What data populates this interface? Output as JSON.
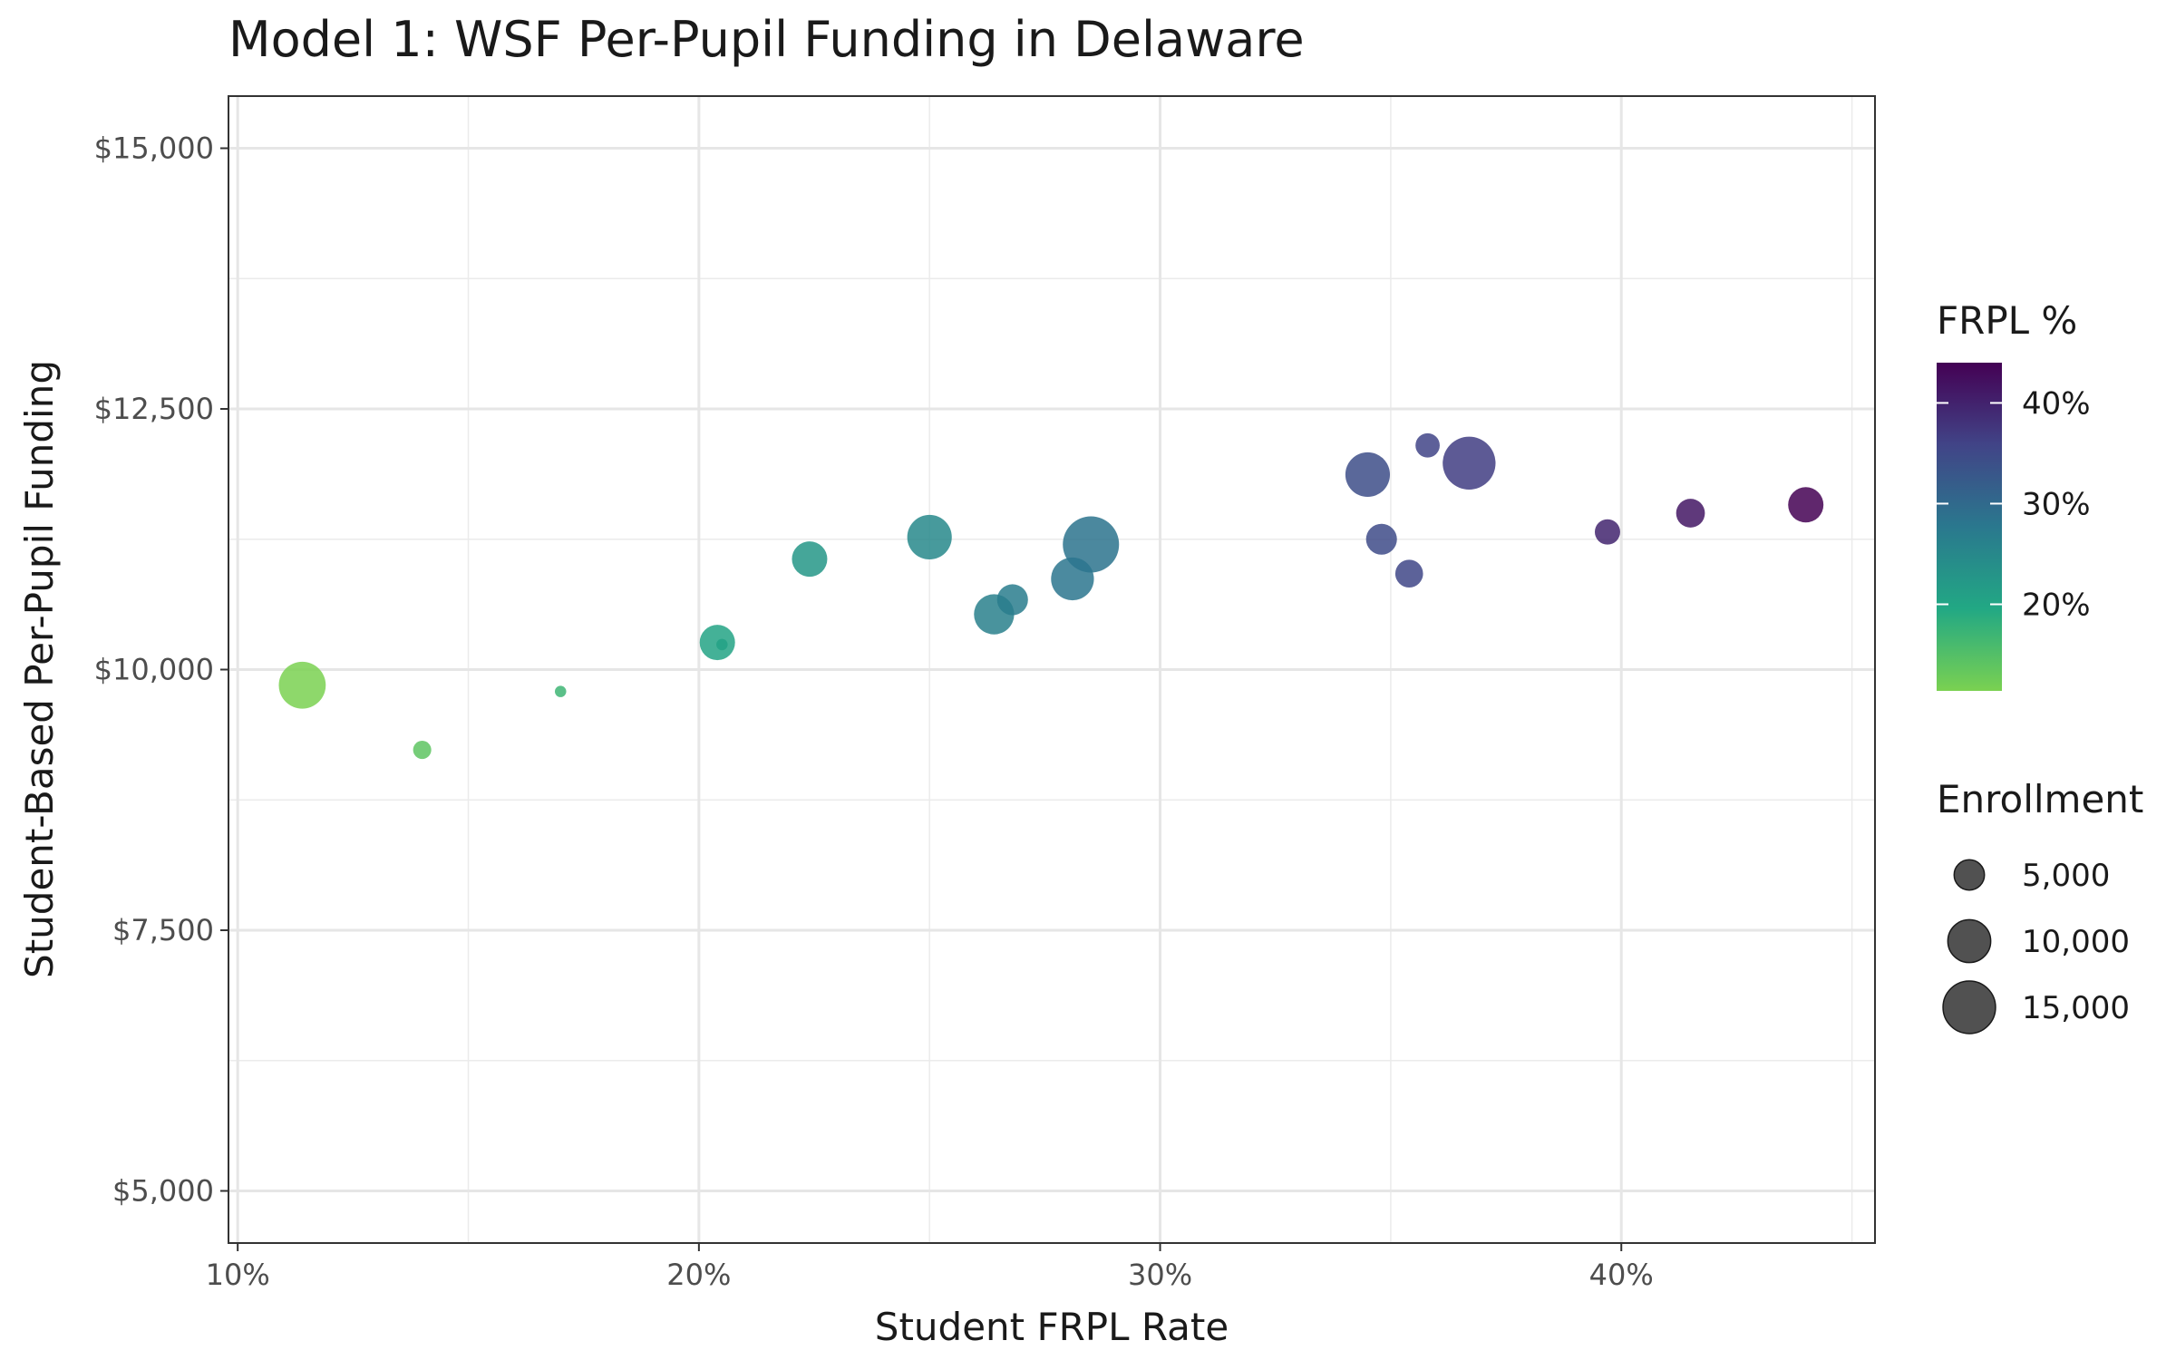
{
  "chart_data": {
    "type": "scatter",
    "title": "Model 1: WSF Per-Pupil Funding in Delaware",
    "xlabel": "Student FRPL Rate",
    "ylabel": "Student-Based Per-Pupil Funding",
    "xlim": [
      0.098,
      0.455
    ],
    "ylim": [
      4500,
      15500
    ],
    "x_ticks": [
      0.1,
      0.2,
      0.3,
      0.4
    ],
    "x_tick_labels": [
      "10%",
      "20%",
      "30%",
      "40%"
    ],
    "y_ticks": [
      5000,
      7500,
      10000,
      12500,
      15000
    ],
    "y_tick_labels": [
      "$5,000",
      "$7,500",
      "$10,000",
      "$12,500",
      "$15,000"
    ],
    "grid": true,
    "legend_placement": "right",
    "color_legend": {
      "title": "FRPL %",
      "breaks": [
        0.2,
        0.3,
        0.4
      ],
      "labels": [
        "20%",
        "30%",
        "40%"
      ],
      "range": [
        0.114,
        0.44
      ],
      "palette": [
        "#7AD151",
        "#22A884",
        "#2A788E",
        "#414487",
        "#440154"
      ]
    },
    "size_legend": {
      "title": "Enrollment",
      "values": [
        5000,
        10000,
        15000
      ],
      "labels": [
        "5,000",
        "10,000",
        "15,000"
      ],
      "point_color": "#333333"
    },
    "points": [
      {
        "x": 0.114,
        "y": 9850,
        "enrollment": 12000
      },
      {
        "x": 0.14,
        "y": 9230,
        "enrollment": 1800
      },
      {
        "x": 0.17,
        "y": 9790,
        "enrollment": 700
      },
      {
        "x": 0.204,
        "y": 10260,
        "enrollment": 6800
      },
      {
        "x": 0.205,
        "y": 10240,
        "enrollment": 700
      },
      {
        "x": 0.224,
        "y": 11060,
        "enrollment": 6800
      },
      {
        "x": 0.25,
        "y": 11270,
        "enrollment": 10800
      },
      {
        "x": 0.264,
        "y": 10530,
        "enrollment": 8800
      },
      {
        "x": 0.268,
        "y": 10670,
        "enrollment": 5200
      },
      {
        "x": 0.281,
        "y": 10870,
        "enrollment": 10000
      },
      {
        "x": 0.285,
        "y": 11200,
        "enrollment": 17200
      },
      {
        "x": 0.345,
        "y": 11870,
        "enrollment": 10800
      },
      {
        "x": 0.348,
        "y": 11250,
        "enrollment": 5200
      },
      {
        "x": 0.354,
        "y": 10920,
        "enrollment": 4200
      },
      {
        "x": 0.358,
        "y": 12150,
        "enrollment": 3200
      },
      {
        "x": 0.367,
        "y": 11980,
        "enrollment": 15200
      },
      {
        "x": 0.397,
        "y": 11320,
        "enrollment": 3500
      },
      {
        "x": 0.415,
        "y": 11500,
        "enrollment": 4500
      },
      {
        "x": 0.44,
        "y": 11580,
        "enrollment": 6800
      }
    ]
  }
}
